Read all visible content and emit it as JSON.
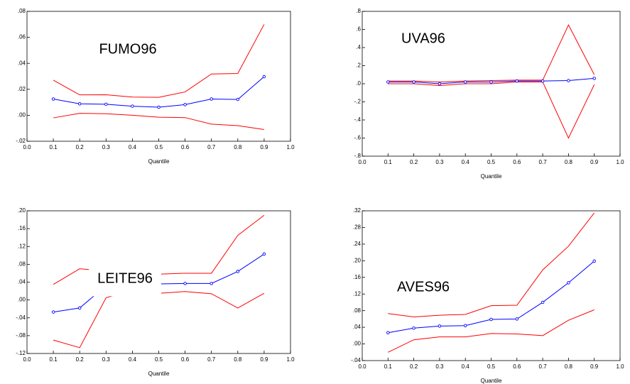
{
  "chart_data": [
    {
      "type": "line",
      "annotation": "FUMO96",
      "xlabel": "Quantile",
      "x": [
        0.1,
        0.2,
        0.3,
        0.4,
        0.5,
        0.6,
        0.7,
        0.8,
        0.9
      ],
      "xlim": [
        0,
        1
      ],
      "xticks": [
        {
          "value": 0,
          "label": "0.0"
        },
        0.1,
        0.2,
        0.3,
        0.4,
        0.5,
        0.6,
        0.7,
        0.8,
        0.9,
        {
          "value": 1,
          "label": "1.0"
        }
      ],
      "ylim": [
        -0.02,
        0.08
      ],
      "yticks": [
        {
          "value": 0.08,
          "label": ".08"
        },
        {
          "value": 0.06,
          "label": ".06"
        },
        {
          "value": 0.04,
          "label": ".04"
        },
        {
          "value": 0.02,
          "label": ".02"
        },
        {
          "value": 0,
          "label": ".00"
        },
        {
          "value": -0.02,
          "label": "-.02"
        }
      ],
      "series": [
        {
          "color": "#ff0000",
          "values": [
            0.027,
            0.0157,
            0.0158,
            0.014,
            0.0138,
            0.018,
            0.0318,
            0.0322,
            0.07
          ]
        },
        {
          "color": "#ff0000",
          "values": [
            -0.002,
            0.0015,
            0.0012,
            0.0,
            -0.0015,
            -0.0018,
            -0.0068,
            -0.008,
            -0.011
          ]
        },
        {
          "color": "#0000ff",
          "markers": true,
          "values": [
            0.0125,
            0.0088,
            0.0085,
            0.007,
            0.0062,
            0.0082,
            0.0125,
            0.0122,
            0.0297
          ]
        }
      ]
    },
    {
      "type": "line",
      "annotation": "UVA96",
      "xlabel": "Quantile",
      "x": [
        0.1,
        0.2,
        0.3,
        0.4,
        0.5,
        0.6,
        0.7,
        0.8,
        0.9
      ],
      "xlim": [
        0,
        1
      ],
      "xticks": [
        {
          "value": 0,
          "label": "0.0"
        },
        0.1,
        0.2,
        0.3,
        0.4,
        0.5,
        0.6,
        0.7,
        0.8,
        0.9,
        {
          "value": 1,
          "label": "1.0"
        }
      ],
      "ylim": [
        -0.8,
        0.8
      ],
      "yticks": [
        {
          "value": 0.8,
          "label": ".8"
        },
        {
          "value": 0.6,
          "label": ".6"
        },
        {
          "value": 0.4,
          "label": ".4"
        },
        {
          "value": 0.2,
          "label": ".2"
        },
        {
          "value": 0,
          "label": ".0"
        },
        {
          "value": -0.2,
          "label": "-.2"
        },
        {
          "value": -0.4,
          "label": "-.4"
        },
        {
          "value": -0.6,
          "label": "-.6"
        },
        {
          "value": -0.8,
          "label": "-.8"
        }
      ],
      "series": [
        {
          "color": "#ff0000",
          "values": [
            0.03,
            0.03,
            0.02,
            0.03,
            0.035,
            0.04,
            0.04,
            0.65,
            0.1
          ]
        },
        {
          "color": "#ff0000",
          "values": [
            0.0,
            0.0,
            -0.02,
            0.0,
            0.0,
            0.02,
            0.02,
            -0.6,
            -0.01
          ]
        },
        {
          "color": "#0000ff",
          "markers": true,
          "values": [
            0.02,
            0.02,
            0.0,
            0.02,
            0.02,
            0.03,
            0.03,
            0.035,
            0.06
          ]
        }
      ]
    },
    {
      "type": "line",
      "annotation": "LEITE96",
      "xlabel": "Quantile",
      "x": [
        0.1,
        0.2,
        0.3,
        0.4,
        0.5,
        0.6,
        0.7,
        0.8,
        0.9
      ],
      "xlim": [
        0,
        1
      ],
      "xticks": [
        {
          "value": 0,
          "label": "0.0"
        },
        0.1,
        0.2,
        0.3,
        0.4,
        0.5,
        0.6,
        0.7,
        0.8,
        0.9,
        {
          "value": 1,
          "label": "1.0"
        }
      ],
      "ylim": [
        -0.12,
        0.2
      ],
      "yticks": [
        {
          "value": 0.2,
          "label": ".20"
        },
        {
          "value": 0.16,
          "label": ".16"
        },
        {
          "value": 0.12,
          "label": ".12"
        },
        {
          "value": 0.08,
          "label": ".08"
        },
        {
          "value": 0.04,
          "label": ".04"
        },
        {
          "value": 0,
          "label": ".00"
        },
        {
          "value": -0.04,
          "label": "-.04"
        },
        {
          "value": -0.08,
          "label": "-.08"
        },
        {
          "value": -0.12,
          "label": "-.12"
        }
      ],
      "series": [
        {
          "color": "#ff0000",
          "values": [
            0.035,
            0.07,
            0.065,
            0.06,
            0.058,
            0.06,
            0.06,
            0.145,
            0.19
          ]
        },
        {
          "color": "#ff0000",
          "values": [
            -0.09,
            -0.107,
            0.005,
            0.023,
            0.015,
            0.019,
            0.014,
            -0.018,
            0.015
          ]
        },
        {
          "color": "#0000ff",
          "markers": true,
          "values": [
            -0.027,
            -0.018,
            0.032,
            0.035,
            0.036,
            0.037,
            0.037,
            0.064,
            0.103
          ]
        }
      ]
    },
    {
      "type": "line",
      "annotation": "AVES96",
      "xlabel": "Quantile",
      "x": [
        0.1,
        0.2,
        0.3,
        0.4,
        0.5,
        0.6,
        0.7,
        0.8,
        0.9
      ],
      "xlim": [
        0,
        1
      ],
      "xticks": [
        {
          "value": 0,
          "label": "0.0"
        },
        0.1,
        0.2,
        0.3,
        0.4,
        0.5,
        0.6,
        0.7,
        0.8,
        0.9,
        {
          "value": 1,
          "label": "1.0"
        }
      ],
      "ylim": [
        -0.04,
        0.32
      ],
      "yticks": [
        {
          "value": 0.32,
          "label": ".32"
        },
        {
          "value": 0.28,
          "label": ".28"
        },
        {
          "value": 0.24,
          "label": ".24"
        },
        {
          "value": 0.2,
          "label": ".20"
        },
        {
          "value": 0.16,
          "label": ".16"
        },
        {
          "value": 0.12,
          "label": ".12"
        },
        {
          "value": 0.08,
          "label": ".08"
        },
        {
          "value": 0.04,
          "label": ".04"
        },
        {
          "value": 0,
          "label": ".00"
        },
        {
          "value": -0.04,
          "label": "-.04"
        }
      ],
      "series": [
        {
          "color": "#ff0000",
          "values": [
            0.073,
            0.065,
            0.069,
            0.071,
            0.092,
            0.093,
            0.178,
            0.235,
            0.315
          ]
        },
        {
          "color": "#ff0000",
          "values": [
            -0.02,
            0.01,
            0.017,
            0.017,
            0.025,
            0.024,
            0.02,
            0.057,
            0.082
          ]
        },
        {
          "color": "#0000ff",
          "markers": true,
          "values": [
            0.027,
            0.038,
            0.043,
            0.044,
            0.059,
            0.06,
            0.1,
            0.147,
            0.199
          ]
        }
      ]
    }
  ]
}
